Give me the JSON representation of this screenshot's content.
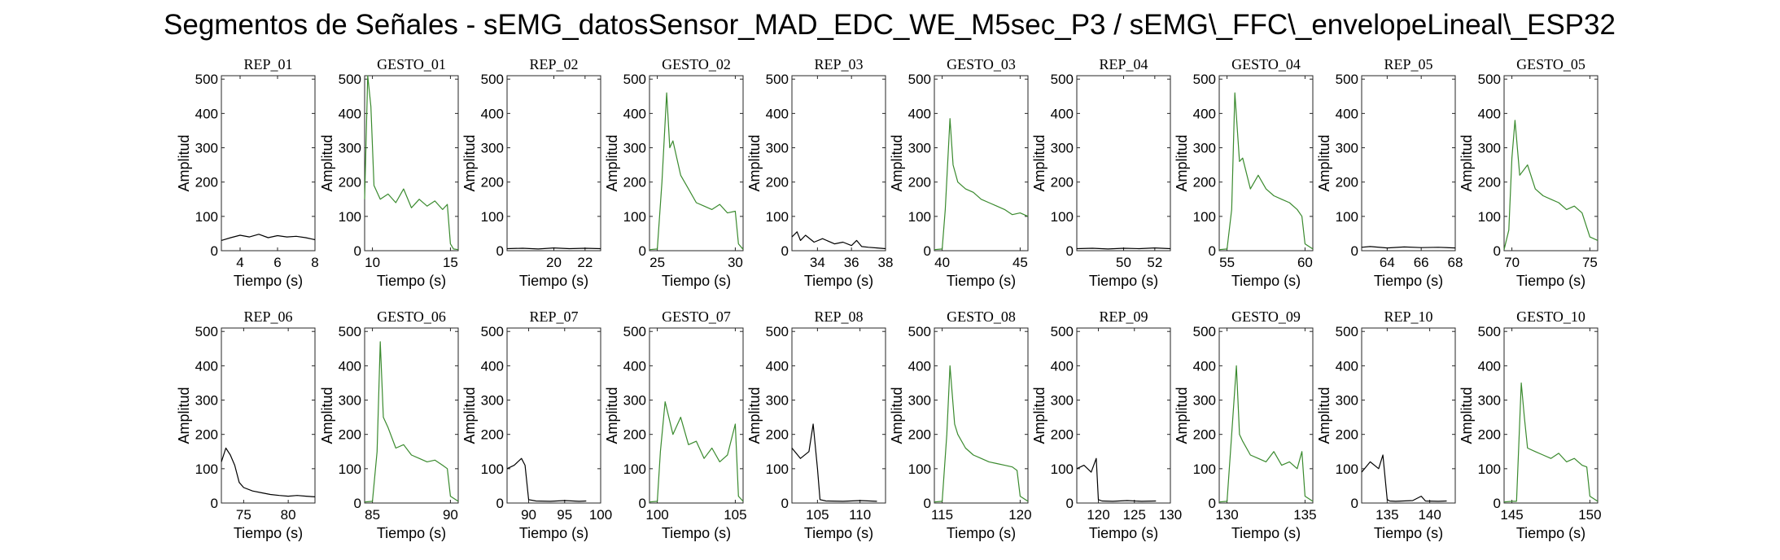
{
  "title": "Segmentos de Señales - sEMG_datosSensor_MAD_EDC_WE_M5sec_P3 / sEMG\\_FFC\\_envelopeLineal\\_ESP32",
  "colors": {
    "rep": "#000000",
    "gesto": "#3a8a2e"
  },
  "chart_data": [
    {
      "type": "line",
      "title": "REP_01",
      "xlabel": "Tiempo (s)",
      "ylabel": "Amplitud",
      "xlim": [
        3,
        8
      ],
      "ylim": [
        0,
        510
      ],
      "xticks": [
        4,
        6,
        8
      ],
      "yticks": [
        0,
        100,
        200,
        300,
        400,
        500
      ],
      "series": [
        {
          "color": "#000000",
          "x": [
            3,
            3.5,
            4,
            4.5,
            5,
            5.5,
            6,
            6.5,
            7,
            7.5,
            8
          ],
          "y": [
            30,
            38,
            45,
            40,
            48,
            38,
            44,
            40,
            42,
            38,
            32
          ]
        }
      ]
    },
    {
      "type": "line",
      "title": "GESTO_01",
      "xlabel": "Tiempo (s)",
      "ylabel": "Amplitud",
      "xlim": [
        9.5,
        15.5
      ],
      "ylim": [
        0,
        510
      ],
      "xticks": [
        10,
        15
      ],
      "yticks": [
        0,
        100,
        200,
        300,
        400,
        500
      ],
      "series": [
        {
          "color": "#3a8a2e",
          "x": [
            9.5,
            9.7,
            9.9,
            10.1,
            10.5,
            11,
            11.5,
            12,
            12.5,
            13,
            13.5,
            14,
            14.5,
            14.8,
            15,
            15.2,
            15.5
          ],
          "y": [
            150,
            510,
            420,
            190,
            150,
            165,
            140,
            180,
            125,
            150,
            130,
            145,
            120,
            135,
            20,
            5,
            3
          ]
        }
      ]
    },
    {
      "type": "line",
      "title": "REP_02",
      "xlabel": "Tiempo (s)",
      "ylabel": "Amplitud",
      "xlim": [
        17,
        23
      ],
      "ylim": [
        0,
        510
      ],
      "xticks": [
        20,
        22
      ],
      "yticks": [
        0,
        100,
        200,
        300,
        400,
        500
      ],
      "series": [
        {
          "color": "#000000",
          "x": [
            17,
            18,
            19,
            20,
            21,
            22,
            23
          ],
          "y": [
            6,
            7,
            5,
            8,
            6,
            7,
            6
          ]
        }
      ]
    },
    {
      "type": "line",
      "title": "GESTO_02",
      "xlabel": "Tiempo (s)",
      "ylabel": "Amplitud",
      "xlim": [
        24.5,
        30.5
      ],
      "ylim": [
        0,
        510
      ],
      "xticks": [
        25,
        30
      ],
      "yticks": [
        0,
        100,
        200,
        300,
        400,
        500
      ],
      "series": [
        {
          "color": "#3a8a2e",
          "x": [
            24.5,
            25,
            25.3,
            25.6,
            25.8,
            26,
            26.5,
            27,
            27.5,
            28,
            28.5,
            29,
            29.5,
            30,
            30.2,
            30.5
          ],
          "y": [
            3,
            5,
            200,
            460,
            300,
            320,
            220,
            180,
            140,
            130,
            120,
            135,
            110,
            115,
            20,
            4
          ]
        }
      ]
    },
    {
      "type": "line",
      "title": "REP_03",
      "xlabel": "Tiempo (s)",
      "ylabel": "Amplitud",
      "xlim": [
        32.5,
        38
      ],
      "ylim": [
        0,
        510
      ],
      "xticks": [
        34,
        36,
        38
      ],
      "yticks": [
        0,
        100,
        200,
        300,
        400,
        500
      ],
      "series": [
        {
          "color": "#000000",
          "x": [
            32.5,
            32.8,
            33,
            33.3,
            33.8,
            34.3,
            35,
            35.5,
            36,
            36.3,
            36.6,
            37,
            37.5,
            38
          ],
          "y": [
            40,
            55,
            30,
            45,
            25,
            35,
            20,
            25,
            15,
            30,
            12,
            10,
            8,
            6
          ]
        }
      ]
    },
    {
      "type": "line",
      "title": "GESTO_03",
      "xlabel": "Tiempo (s)",
      "ylabel": "Amplitud",
      "xlim": [
        39.5,
        45.5
      ],
      "ylim": [
        0,
        510
      ],
      "xticks": [
        40,
        45
      ],
      "yticks": [
        0,
        100,
        200,
        300,
        400,
        500
      ],
      "series": [
        {
          "color": "#3a8a2e",
          "x": [
            39.5,
            40,
            40.2,
            40.5,
            40.7,
            41,
            41.5,
            42,
            42.5,
            43,
            43.5,
            44,
            44.5,
            45,
            45.5
          ],
          "y": [
            3,
            5,
            120,
            385,
            250,
            200,
            180,
            170,
            150,
            140,
            130,
            120,
            105,
            110,
            100
          ]
        }
      ]
    },
    {
      "type": "line",
      "title": "REP_04",
      "xlabel": "Tiempo (s)",
      "ylabel": "Amplitud",
      "xlim": [
        47,
        53
      ],
      "ylim": [
        0,
        510
      ],
      "xticks": [
        50,
        52
      ],
      "yticks": [
        0,
        100,
        200,
        300,
        400,
        500
      ],
      "series": [
        {
          "color": "#000000",
          "x": [
            47,
            48,
            49,
            50,
            51,
            52,
            53
          ],
          "y": [
            6,
            7,
            5,
            7,
            6,
            8,
            6
          ]
        }
      ]
    },
    {
      "type": "line",
      "title": "GESTO_04",
      "xlabel": "Tiempo (s)",
      "ylabel": "Amplitud",
      "xlim": [
        54.5,
        60.5
      ],
      "ylim": [
        0,
        510
      ],
      "xticks": [
        55,
        60
      ],
      "yticks": [
        0,
        100,
        200,
        300,
        400,
        500
      ],
      "series": [
        {
          "color": "#3a8a2e",
          "x": [
            54.5,
            55,
            55.3,
            55.5,
            55.8,
            56,
            56.5,
            57,
            57.5,
            58,
            58.5,
            59,
            59.5,
            59.8,
            60,
            60.5
          ],
          "y": [
            3,
            5,
            120,
            460,
            260,
            270,
            180,
            220,
            180,
            160,
            150,
            140,
            120,
            100,
            20,
            5
          ]
        }
      ]
    },
    {
      "type": "line",
      "title": "REP_05",
      "xlabel": "Tiempo (s)",
      "ylabel": "Amplitud",
      "xlim": [
        62.5,
        68
      ],
      "ylim": [
        0,
        510
      ],
      "xticks": [
        64,
        66,
        68
      ],
      "yticks": [
        0,
        100,
        200,
        300,
        400,
        500
      ],
      "series": [
        {
          "color": "#000000",
          "x": [
            62.5,
            63,
            64,
            65,
            66,
            67,
            68
          ],
          "y": [
            10,
            12,
            8,
            11,
            9,
            10,
            8
          ]
        }
      ]
    },
    {
      "type": "line",
      "title": "GESTO_05",
      "xlabel": "Tiempo (s)",
      "ylabel": "Amplitud",
      "xlim": [
        69.5,
        75.5
      ],
      "ylim": [
        0,
        510
      ],
      "xticks": [
        70,
        75
      ],
      "yticks": [
        0,
        100,
        200,
        300,
        400,
        500
      ],
      "series": [
        {
          "color": "#3a8a2e",
          "x": [
            69.5,
            69.8,
            70,
            70.2,
            70.5,
            71,
            71.5,
            72,
            72.5,
            73,
            73.5,
            74,
            74.5,
            75,
            75.5
          ],
          "y": [
            3,
            60,
            270,
            380,
            220,
            250,
            180,
            160,
            150,
            140,
            120,
            130,
            110,
            40,
            30
          ]
        }
      ]
    },
    {
      "type": "line",
      "title": "REP_06",
      "xlabel": "Tiempo (s)",
      "ylabel": "Amplitud",
      "xlim": [
        72.5,
        83
      ],
      "ylim": [
        0,
        510
      ],
      "xticks": [
        75,
        80
      ],
      "yticks": [
        0,
        100,
        200,
        300,
        400,
        500
      ],
      "series": [
        {
          "color": "#000000",
          "x": [
            72.5,
            73,
            73.5,
            74,
            74.5,
            75,
            76,
            77,
            78,
            79,
            80,
            81,
            82,
            83
          ],
          "y": [
            120,
            160,
            140,
            110,
            60,
            45,
            35,
            30,
            25,
            22,
            20,
            22,
            20,
            18
          ]
        }
      ]
    },
    {
      "type": "line",
      "title": "GESTO_06",
      "xlabel": "Tiempo (s)",
      "ylabel": "Amplitud",
      "xlim": [
        84.5,
        90.5
      ],
      "ylim": [
        0,
        510
      ],
      "xticks": [
        85,
        90
      ],
      "yticks": [
        0,
        100,
        200,
        300,
        400,
        500
      ],
      "series": [
        {
          "color": "#3a8a2e",
          "x": [
            84.5,
            85,
            85.3,
            85.5,
            85.7,
            86,
            86.5,
            87,
            87.5,
            88,
            88.5,
            89,
            89.5,
            89.8,
            90,
            90.5
          ],
          "y": [
            3,
            5,
            150,
            470,
            250,
            220,
            160,
            170,
            140,
            130,
            120,
            125,
            110,
            100,
            20,
            5
          ]
        }
      ]
    },
    {
      "type": "line",
      "title": "REP_07",
      "xlabel": "Tiempo (s)",
      "ylabel": "Amplitud",
      "xlim": [
        87,
        100
      ],
      "ylim": [
        0,
        510
      ],
      "xticks": [
        90,
        95,
        100
      ],
      "yticks": [
        0,
        100,
        200,
        300,
        400,
        500
      ],
      "series": [
        {
          "color": "#000000",
          "x": [
            87,
            88,
            89,
            89.5,
            90,
            91,
            93,
            95,
            97,
            98
          ],
          "y": [
            100,
            110,
            130,
            110,
            10,
            6,
            5,
            7,
            5,
            6
          ]
        }
      ]
    },
    {
      "type": "line",
      "title": "GESTO_07",
      "xlabel": "Tiempo (s)",
      "ylabel": "Amplitud",
      "xlim": [
        99.5,
        105.5
      ],
      "ylim": [
        0,
        510
      ],
      "xticks": [
        100,
        105
      ],
      "yticks": [
        0,
        100,
        200,
        300,
        400,
        500
      ],
      "series": [
        {
          "color": "#3a8a2e",
          "x": [
            99.5,
            100,
            100.2,
            100.5,
            101,
            101.5,
            102,
            102.5,
            103,
            103.5,
            104,
            104.5,
            105,
            105.2,
            105.5
          ],
          "y": [
            3,
            5,
            150,
            295,
            200,
            250,
            170,
            180,
            130,
            160,
            120,
            140,
            230,
            20,
            5
          ]
        }
      ]
    },
    {
      "type": "line",
      "title": "REP_08",
      "xlabel": "Tiempo (s)",
      "ylabel": "Amplitud",
      "xlim": [
        102,
        113
      ],
      "ylim": [
        0,
        510
      ],
      "xticks": [
        105,
        110
      ],
      "yticks": [
        0,
        100,
        200,
        300,
        400,
        500
      ],
      "series": [
        {
          "color": "#000000",
          "x": [
            102,
            103,
            104,
            104.5,
            105,
            105.3,
            106,
            108,
            110,
            112
          ],
          "y": [
            160,
            130,
            150,
            230,
            100,
            10,
            6,
            5,
            7,
            5
          ]
        }
      ]
    },
    {
      "type": "line",
      "title": "GESTO_08",
      "xlabel": "Tiempo (s)",
      "ylabel": "Amplitud",
      "xlim": [
        114.5,
        120.5
      ],
      "ylim": [
        0,
        510
      ],
      "xticks": [
        115,
        120
      ],
      "yticks": [
        0,
        100,
        200,
        300,
        400,
        500
      ],
      "series": [
        {
          "color": "#3a8a2e",
          "x": [
            114.5,
            115,
            115.3,
            115.5,
            115.8,
            116,
            116.5,
            117,
            117.5,
            118,
            118.5,
            119,
            119.5,
            119.8,
            120,
            120.5
          ],
          "y": [
            3,
            5,
            200,
            400,
            230,
            200,
            160,
            140,
            130,
            120,
            115,
            110,
            105,
            95,
            20,
            5
          ]
        }
      ]
    },
    {
      "type": "line",
      "title": "REP_09",
      "xlabel": "Tiempo (s)",
      "ylabel": "Amplitud",
      "xlim": [
        117,
        130
      ],
      "ylim": [
        0,
        510
      ],
      "xticks": [
        120,
        125,
        130
      ],
      "yticks": [
        0,
        100,
        200,
        300,
        400,
        500
      ],
      "series": [
        {
          "color": "#000000",
          "x": [
            117,
            118,
            119,
            119.7,
            120,
            120.5,
            122,
            124,
            126,
            128
          ],
          "y": [
            100,
            110,
            90,
            130,
            10,
            6,
            5,
            7,
            5,
            6
          ]
        }
      ]
    },
    {
      "type": "line",
      "title": "GESTO_09",
      "xlabel": "Tiempo (s)",
      "ylabel": "Amplitud",
      "xlim": [
        129.5,
        135.5
      ],
      "ylim": [
        0,
        510
      ],
      "xticks": [
        130,
        135
      ],
      "yticks": [
        0,
        100,
        200,
        300,
        400,
        500
      ],
      "series": [
        {
          "color": "#3a8a2e",
          "x": [
            129.5,
            130,
            130.3,
            130.6,
            130.8,
            131,
            131.5,
            132,
            132.5,
            133,
            133.5,
            134,
            134.5,
            134.8,
            135,
            135.5
          ],
          "y": [
            3,
            5,
            200,
            400,
            200,
            180,
            140,
            130,
            120,
            150,
            110,
            120,
            100,
            150,
            20,
            5
          ]
        }
      ]
    },
    {
      "type": "line",
      "title": "REP_10",
      "xlabel": "Tiempo (s)",
      "ylabel": "Amplitud",
      "xlim": [
        132,
        143
      ],
      "ylim": [
        0,
        510
      ],
      "xticks": [
        135,
        140
      ],
      "yticks": [
        0,
        100,
        200,
        300,
        400,
        500
      ],
      "series": [
        {
          "color": "#000000",
          "x": [
            132,
            133,
            134,
            134.5,
            135,
            135.3,
            136,
            138,
            139,
            139.5,
            141,
            142
          ],
          "y": [
            90,
            120,
            100,
            140,
            10,
            6,
            5,
            7,
            20,
            6,
            5,
            6
          ]
        }
      ]
    },
    {
      "type": "line",
      "title": "GESTO_10",
      "xlabel": "Tiempo (s)",
      "ylabel": "Amplitud",
      "xlim": [
        144.5,
        150.5
      ],
      "ylim": [
        0,
        510
      ],
      "xticks": [
        145,
        150
      ],
      "yticks": [
        0,
        100,
        200,
        300,
        400,
        500
      ],
      "series": [
        {
          "color": "#3a8a2e",
          "x": [
            144.5,
            145,
            145.3,
            145.6,
            145.8,
            146,
            146.5,
            147,
            147.5,
            148,
            148.5,
            149,
            149.5,
            149.8,
            150,
            150.5
          ],
          "y": [
            3,
            5,
            5,
            350,
            250,
            160,
            150,
            140,
            130,
            145,
            120,
            130,
            110,
            105,
            20,
            5
          ]
        }
      ]
    }
  ]
}
